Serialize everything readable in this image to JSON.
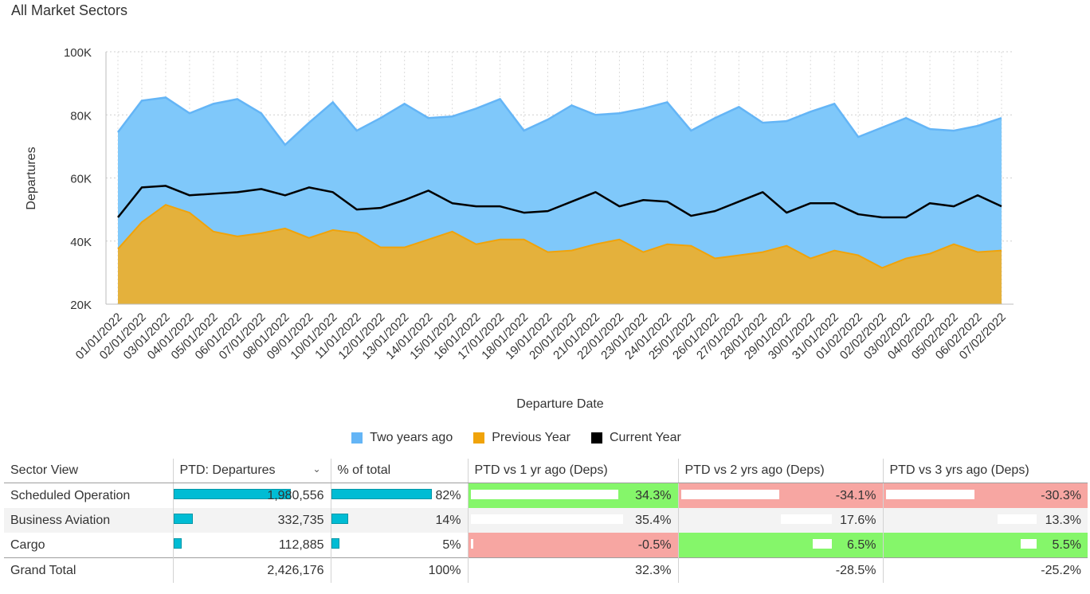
{
  "page_title": "All Market Sectors",
  "colors": {
    "two_years_ago": "#7fc8fa",
    "previous_year": "#f0a30a",
    "current_year": "#000000",
    "positive": "#85f66a",
    "negative": "#f7a6a2",
    "bar": "#00bcd4"
  },
  "chart_data": {
    "type": "area",
    "title": "",
    "xlabel": "Departure Date",
    "ylabel": "Departures",
    "ylim": [
      20000,
      100000
    ],
    "y_ticks": [
      "20K",
      "40K",
      "60K",
      "80K",
      "100K"
    ],
    "grid": true,
    "legend_position": "bottom",
    "x": [
      "01/01/2022",
      "02/01/2022",
      "03/01/2022",
      "04/01/2022",
      "05/01/2022",
      "06/01/2022",
      "07/01/2022",
      "08/01/2022",
      "09/01/2022",
      "10/01/2022",
      "11/01/2022",
      "12/01/2022",
      "13/01/2022",
      "14/01/2022",
      "15/01/2022",
      "16/01/2022",
      "17/01/2022",
      "18/01/2022",
      "19/01/2022",
      "20/01/2022",
      "21/01/2022",
      "22/01/2022",
      "23/01/2022",
      "24/01/2022",
      "25/01/2022",
      "26/01/2022",
      "27/01/2022",
      "28/01/2022",
      "29/01/2022",
      "30/01/2022",
      "31/01/2022",
      "01/02/2022",
      "02/02/2022",
      "03/02/2022",
      "04/02/2022",
      "05/02/2022",
      "06/02/2022",
      "07/02/2022"
    ],
    "series": [
      {
        "name": "Two years ago",
        "type": "area",
        "values": [
          74500,
          84500,
          85500,
          80500,
          83500,
          85000,
          80500,
          70500,
          77500,
          84000,
          75000,
          79000,
          83500,
          79000,
          79500,
          82000,
          85000,
          75000,
          78500,
          83000,
          80000,
          80500,
          82000,
          84000,
          75000,
          79000,
          82500,
          77500,
          78000,
          81000,
          83500,
          73000,
          76000,
          79000,
          75500,
          75000,
          76500,
          79000
        ]
      },
      {
        "name": "Previous Year",
        "type": "area",
        "values": [
          37500,
          46000,
          51500,
          49000,
          43000,
          41500,
          42500,
          44000,
          41000,
          43500,
          42500,
          38000,
          38000,
          40500,
          43000,
          39000,
          40500,
          40500,
          36500,
          37000,
          39000,
          40500,
          36500,
          39000,
          38500,
          34500,
          35500,
          36500,
          38500,
          34500,
          37000,
          35500,
          31500,
          34500,
          36000,
          39000,
          36500,
          37000
        ]
      },
      {
        "name": "Current Year",
        "type": "line",
        "values": [
          47500,
          57000,
          57500,
          54500,
          55000,
          55500,
          56500,
          54500,
          57000,
          55500,
          50000,
          50500,
          53000,
          56000,
          52000,
          51000,
          51000,
          49000,
          49500,
          52500,
          55500,
          51000,
          53000,
          52500,
          48000,
          49500,
          52500,
          55500,
          49000,
          52000,
          52000,
          48500,
          47500,
          47500,
          52000,
          51000,
          54500,
          51000
        ]
      }
    ]
  },
  "table": {
    "headers": [
      "Sector View",
      "PTD: Departures",
      "% of total",
      "PTD vs 1 yr ago (Deps)",
      "PTD vs 2 yrs ago (Deps)",
      "PTD vs 3 yrs ago (Deps)"
    ],
    "rows": [
      {
        "sector": "Scheduled Operation",
        "departures": "1,980,556",
        "dep_fraction": 1.0,
        "pct": "82%",
        "pct_fraction": 0.82,
        "vs1": "34.3%",
        "vs1_value": 34.3,
        "vs2": "-34.1%",
        "vs2_value": -34.1,
        "vs3": "-30.3%",
        "vs3_value": -30.3
      },
      {
        "sector": "Business Aviation",
        "departures": "332,735",
        "dep_fraction": 0.168,
        "pct": "14%",
        "pct_fraction": 0.14,
        "vs1": "35.4%",
        "vs1_value": 35.4,
        "vs2": "17.6%",
        "vs2_value": 17.6,
        "vs3": "13.3%",
        "vs3_value": 13.3
      },
      {
        "sector": "Cargo",
        "departures": "112,885",
        "dep_fraction": 0.057,
        "pct": "5%",
        "pct_fraction": 0.05,
        "vs1": "-0.5%",
        "vs1_value": -0.5,
        "vs2": "6.5%",
        "vs2_value": 6.5,
        "vs3": "5.5%",
        "vs3_value": 5.5
      }
    ],
    "total": {
      "label": "Grand Total",
      "departures": "2,426,176",
      "pct": "100%",
      "vs1": "32.3%",
      "vs2": "-28.5%",
      "vs3": "-25.2%"
    }
  }
}
